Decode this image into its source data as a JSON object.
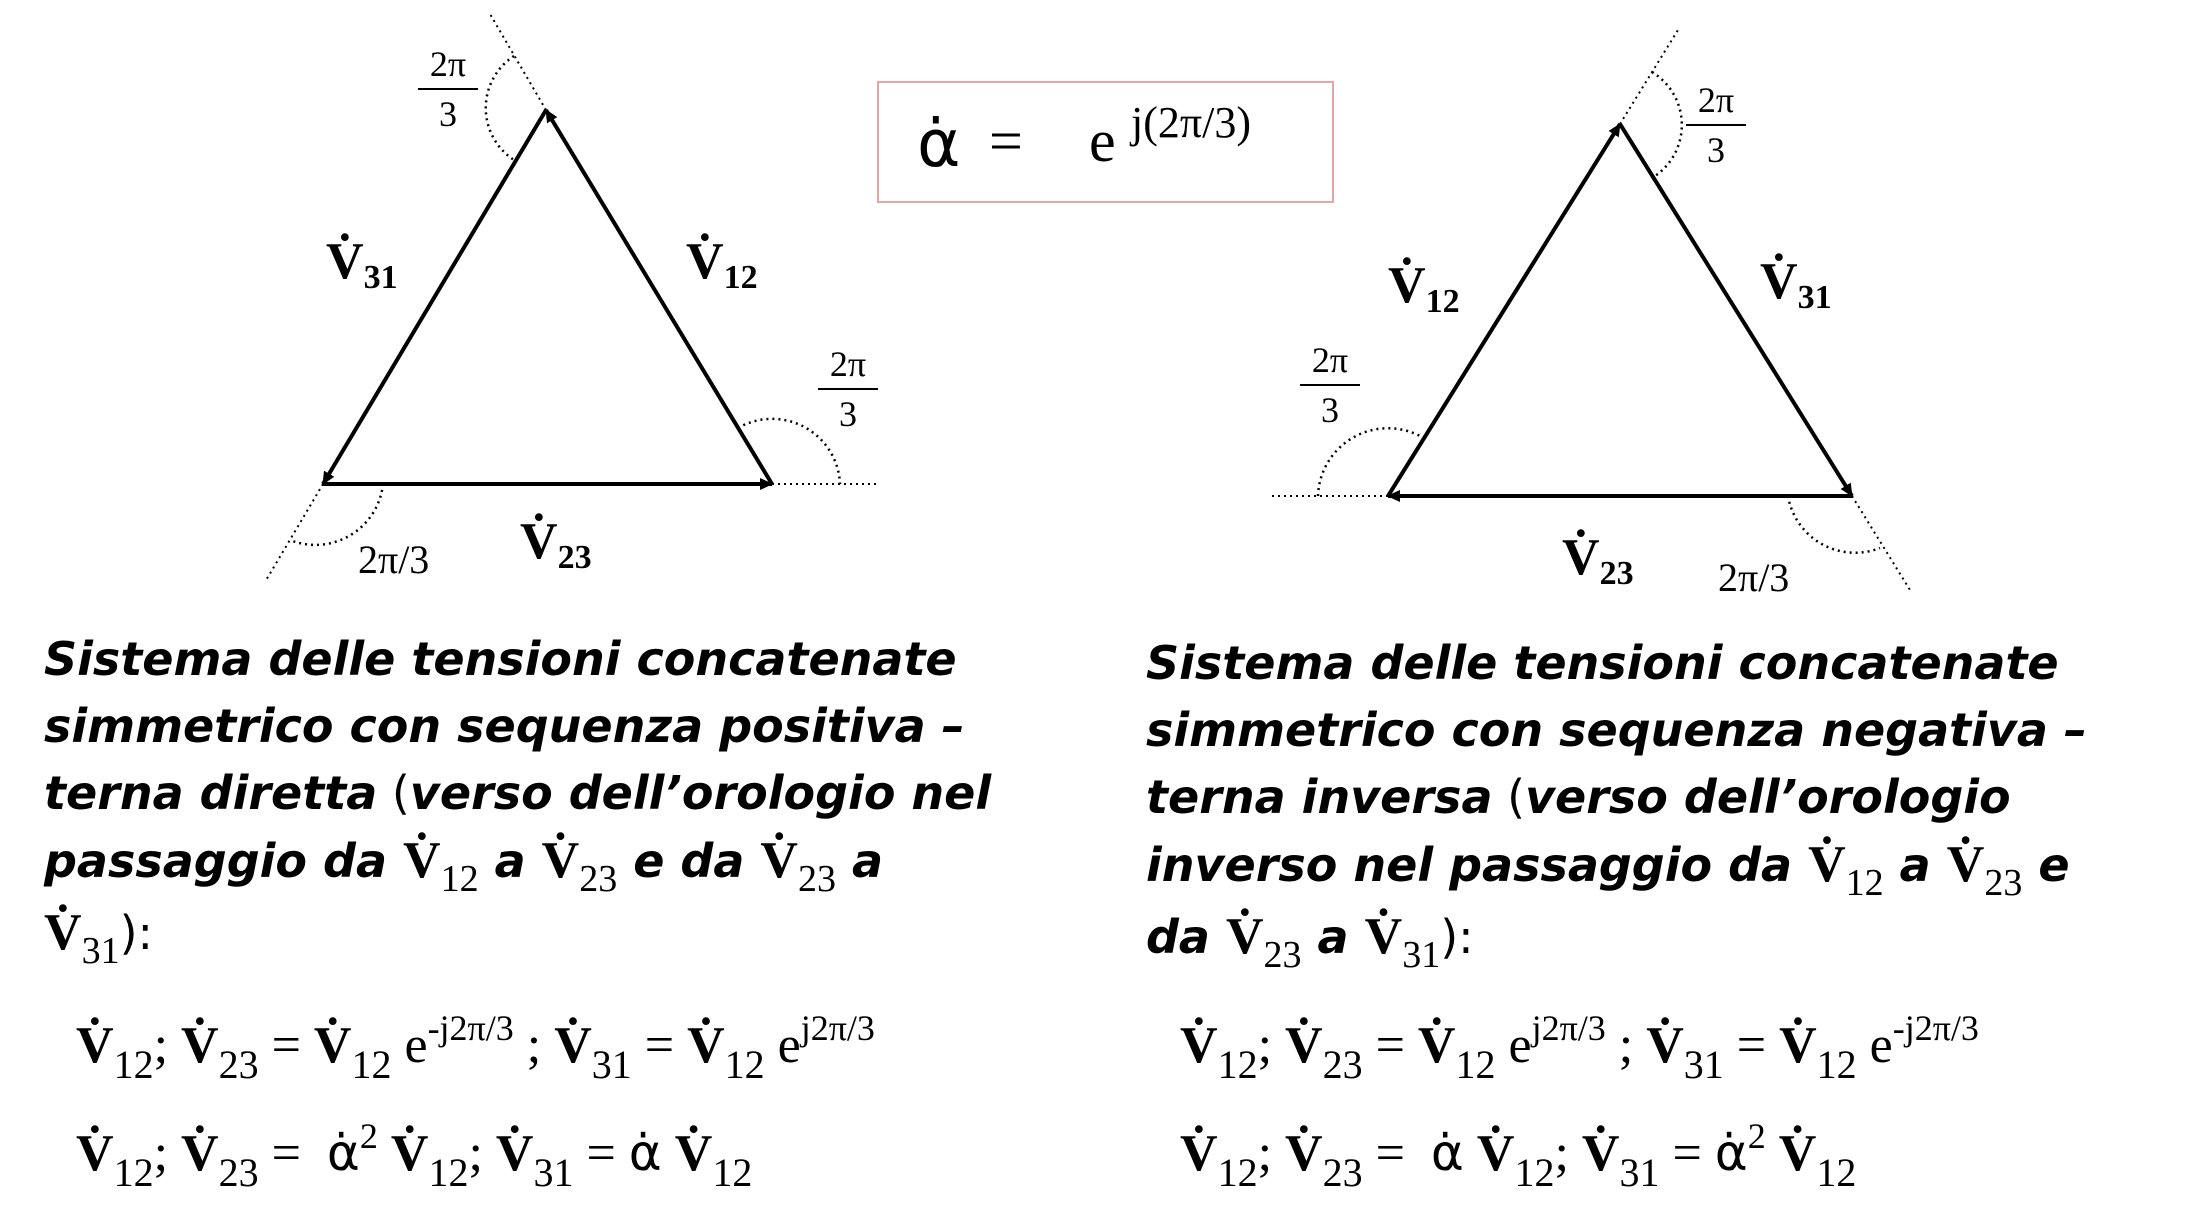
{
  "alpha_definition": {
    "symbol": "α̇",
    "equals": "=",
    "base": "e",
    "exponent": "j(2π/3)"
  },
  "left_diagram": {
    "labels": {
      "v12": "V̇",
      "v12_sub": "12",
      "v23": "V̇",
      "v23_sub": "23",
      "v31": "V̇",
      "v31_sub": "31"
    },
    "angle_fraction_num": "2π",
    "angle_fraction_den": "3",
    "angle_inline": "2π/3"
  },
  "right_diagram": {
    "labels": {
      "v12": "V̇",
      "v12_sub": "12",
      "v23": "V̇",
      "v23_sub": "23",
      "v31": "V̇",
      "v31_sub": "31"
    },
    "angle_fraction_num": "2π",
    "angle_fraction_den": "3",
    "angle_inline": "2π/3"
  },
  "left_caption": {
    "line1": "Sistema delle tensioni concatenate",
    "line2": "simmetrico con sequenza positiva –",
    "line3a": "terna diretta",
    "line3b": " (",
    "line3c": "verso dell’orologio nel",
    "line4a": "passaggio da  ",
    "line4b": " a ",
    "line4c": " e da ",
    "line4d": " a",
    "line5end": "):"
  },
  "right_caption": {
    "line1": "Sistema delle tensioni concatenate",
    "line2": "simmetrico con sequenza negativa –",
    "line3a": "terna inversa",
    "line3b": " (",
    "line3c": "verso dell’orologio",
    "line4a": "inverso nel passaggio da  ",
    "line4b": " a ",
    "line4c": " e",
    "line5a": "da ",
    "line5b": " a ",
    "line5end": "):"
  },
  "symbols": {
    "V": "V̇",
    "alpha": "α̇",
    "s12": "12",
    "s23": "23",
    "s31": "31"
  },
  "left_formulas": {
    "f1_exp_a": "-j2π/3",
    "f1_exp_b": "j2π/3",
    "f2_pow": "2"
  },
  "right_formulas": {
    "f1_exp_a": "j2π/3",
    "f1_exp_b": "-j2π/3",
    "f2_pow": "2"
  },
  "colors": {
    "box_border": "#e0a7a7",
    "ink": "#000000"
  }
}
